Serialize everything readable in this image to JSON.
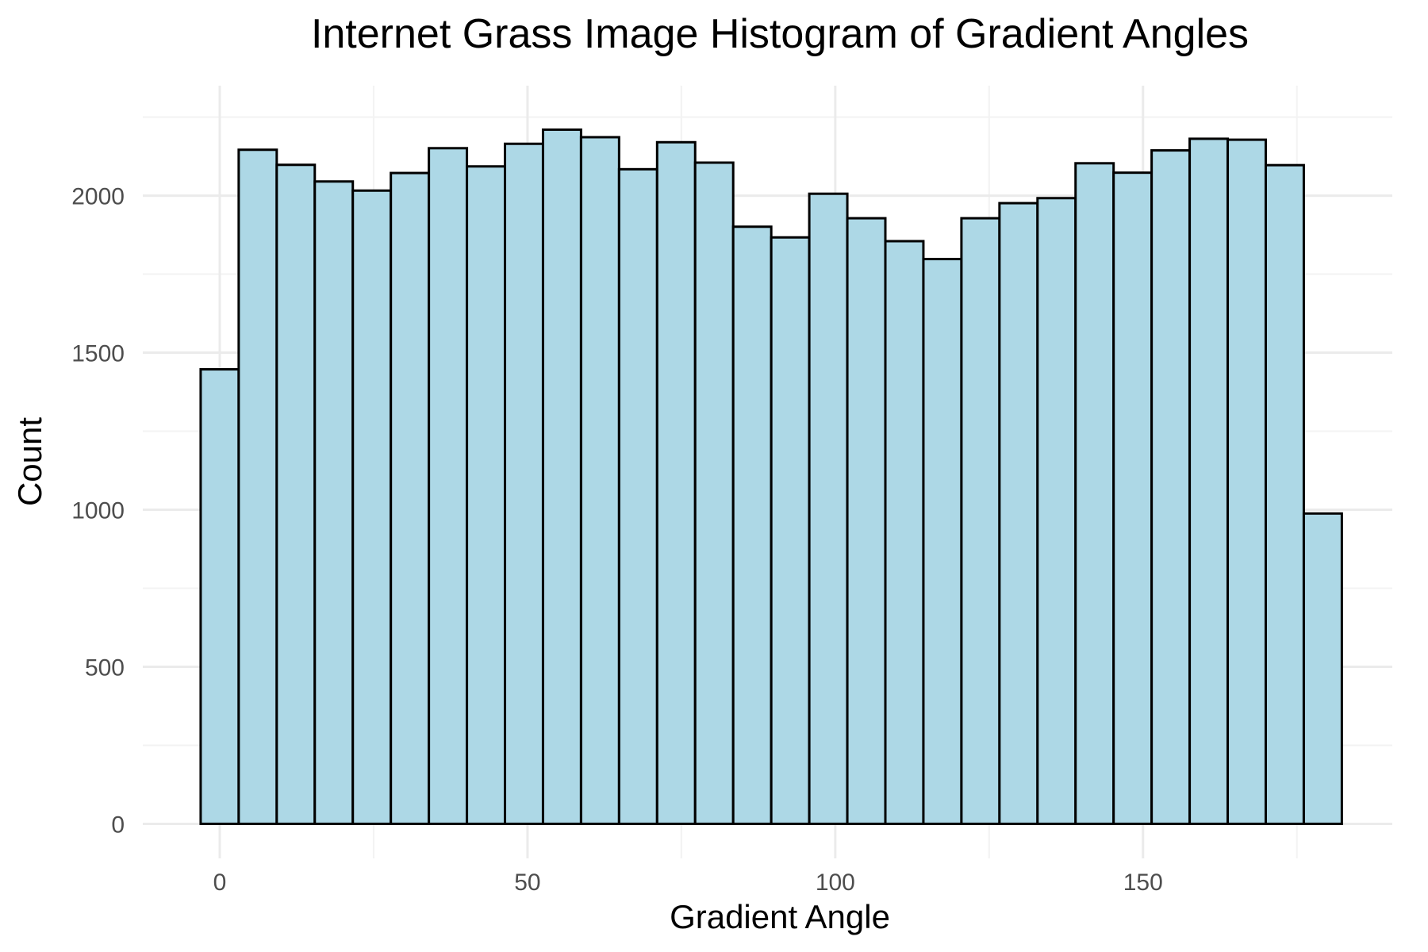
{
  "chart_data": {
    "type": "bar",
    "title": "Internet Grass Image Histogram of Gradient Angles",
    "xlabel": "Gradient Angle",
    "ylabel": "Count",
    "xlim": [
      -12.5,
      190.5
    ],
    "ylim": [
      -110,
      2350
    ],
    "xticks": [
      0,
      50,
      100,
      150
    ],
    "yticks": [
      0,
      500,
      1000,
      1500,
      2000
    ],
    "grid": true,
    "legend": "none",
    "bin_width": 6.18,
    "bin_start": -3.1,
    "values": [
      1447,
      2146,
      2098,
      2045,
      2016,
      2072,
      2151,
      2093,
      2165,
      2210,
      2186,
      2084,
      2170,
      2105,
      1901,
      1867,
      2006,
      1928,
      1855,
      1798,
      1928,
      1976,
      1992,
      2103,
      2073,
      2144,
      2181,
      2178,
      2097,
      988
    ],
    "fill_color": "#add8e6",
    "edge_color": "#000000"
  }
}
